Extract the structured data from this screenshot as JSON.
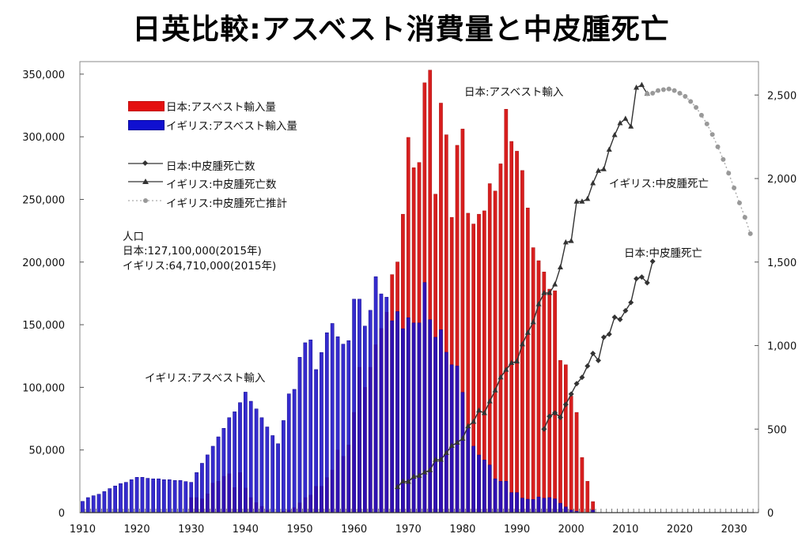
{
  "chart_data": {
    "type": "bar+line",
    "title": "日英比較:アスベスト消費量と中皮腫死亡",
    "x_tick_labels": [
      "1910",
      "1920",
      "1930",
      "1940",
      "1950",
      "1960",
      "1970",
      "1980",
      "1990",
      "2000",
      "2010",
      "2020",
      "2030"
    ],
    "x_ticks": [
      1910,
      1920,
      1930,
      1940,
      1950,
      1960,
      1970,
      1980,
      1990,
      2000,
      2010,
      2020,
      2030
    ],
    "xlim": [
      1910,
      2034
    ],
    "y_left": {
      "ylim": [
        0,
        360000
      ],
      "ticks": [
        0,
        50000,
        100000,
        150000,
        200000,
        250000,
        300000,
        350000
      ],
      "tick_labels": [
        "0",
        "50,000",
        "100,000",
        "150,000",
        "200,000",
        "250,000",
        "300,000",
        "350,000"
      ]
    },
    "y_right": {
      "ylim": [
        0,
        2700
      ],
      "ticks": [
        0,
        500,
        1000,
        1500,
        2000,
        2500
      ],
      "tick_labels": [
        "0",
        "500",
        "1,000",
        "1,500",
        "2,000",
        "2,500"
      ]
    },
    "grid": false,
    "legend_position": "top-left",
    "series": [
      {
        "name": "日本:アスベスト輸入量",
        "type": "bar",
        "axis": "left",
        "color": "#d81e1e",
        "x_start": 1930,
        "values": [
          12000,
          12000,
          11000,
          15000,
          23600,
          25000,
          29000,
          31000,
          20000,
          32000,
          19600,
          12000,
          8000,
          5000,
          2000,
          0,
          0,
          1000,
          2000,
          4000,
          7800,
          12000,
          14000,
          21000,
          21000,
          28000,
          34000,
          50000,
          45000,
          54000,
          80000,
          116000,
          100000,
          116000,
          134000,
          147000,
          160000,
          190000,
          200100,
          238200,
          299500,
          275300,
          279500,
          343100,
          353200,
          254200,
          326900,
          301600,
          235700,
          293200,
          306200,
          239000,
          230400,
          238200,
          240900,
          262600,
          256700,
          278400,
          322000,
          296300,
          288500,
          273100,
          243200,
          211500,
          201100,
          192100,
          178400,
          177100,
          121500,
          118000,
          93000,
          80000,
          44000,
          25000,
          8800
        ]
      },
      {
        "name": "イギリス:アスベスト輸入量",
        "type": "bar",
        "axis": "left",
        "color": "#1a0fc8",
        "x_start": 1910,
        "values": [
          9000,
          12000,
          13500,
          14700,
          16800,
          19200,
          21300,
          23200,
          24200,
          26300,
          28200,
          28200,
          27400,
          27000,
          27000,
          26300,
          26300,
          25700,
          25700,
          24800,
          24200,
          32000,
          39400,
          46100,
          53000,
          60500,
          67300,
          75800,
          80500,
          87800,
          96200,
          88900,
          82800,
          75800,
          68400,
          61500,
          55000,
          73500,
          94800,
          98400,
          124000,
          135600,
          137900,
          114200,
          127800,
          143600,
          151000,
          140400,
          134500,
          137300,
          170400,
          170400,
          148900,
          161500,
          188300,
          174600,
          172000,
          153100,
          160500,
          146800,
          155600,
          151400,
          151400,
          183700,
          154000,
          140000,
          146000,
          128000,
          118000,
          117000,
          96000,
          68000,
          53000,
          46000,
          42000,
          38000,
          27000,
          25000,
          25000,
          16000,
          16000,
          11600,
          10700,
          10500,
          12500,
          11500,
          12000,
          11000,
          7500,
          4500,
          2000,
          1000,
          0,
          0,
          2000
        ]
      },
      {
        "name": "日本:中皮腫死亡数",
        "type": "line",
        "axis": "right",
        "color": "#333333",
        "marker": "diamond",
        "x_start": 1995,
        "values": [
          500,
          576,
          597,
          570,
          647,
          710,
          772,
          810,
          878,
          953,
          911,
          1050,
          1068,
          1170,
          1156,
          1209,
          1258,
          1400,
          1410,
          1376,
          1504
        ]
      },
      {
        "name": "イギリス:中皮腫死亡数",
        "type": "line",
        "axis": "right",
        "color": "#333333",
        "marker": "triangle",
        "x_start": 1968,
        "values": [
          153,
          187,
          185,
          215,
          221,
          241,
          254,
          316,
          317,
          357,
          400,
          419,
          443,
          517,
          544,
          611,
          596,
          666,
          732,
          810,
          855,
          896,
          905,
          1008,
          1077,
          1140,
          1248,
          1315,
          1315,
          1366,
          1468,
          1618,
          1626,
          1862,
          1862,
          1878,
          1972,
          2046,
          2056,
          2173,
          2260,
          2331,
          2358,
          2311,
          2544,
          2560,
          2508
        ]
      },
      {
        "name": "イギリス:中皮腫死亡推計",
        "type": "line",
        "axis": "right",
        "color": "#999999",
        "marker": "circle",
        "dashed": true,
        "x_start": 2014,
        "values": [
          2508,
          2511,
          2527,
          2532,
          2536,
          2527,
          2511,
          2492,
          2461,
          2426,
          2379,
          2327,
          2264,
          2190,
          2114,
          2032,
          1944,
          1854,
          1768,
          1670
        ]
      }
    ],
    "annotations": {
      "japan_import": "日本:アスベスト輸入",
      "uk_import": "イギリス:アスベスト輸入",
      "uk_death": "イギリス:中皮腫死亡",
      "japan_death": "日本:中皮腫死亡"
    },
    "population": {
      "heading": "人口",
      "japan": "日本:127,100,000(2015年)",
      "uk": "イギリス:64,710,000(2015年)"
    }
  }
}
